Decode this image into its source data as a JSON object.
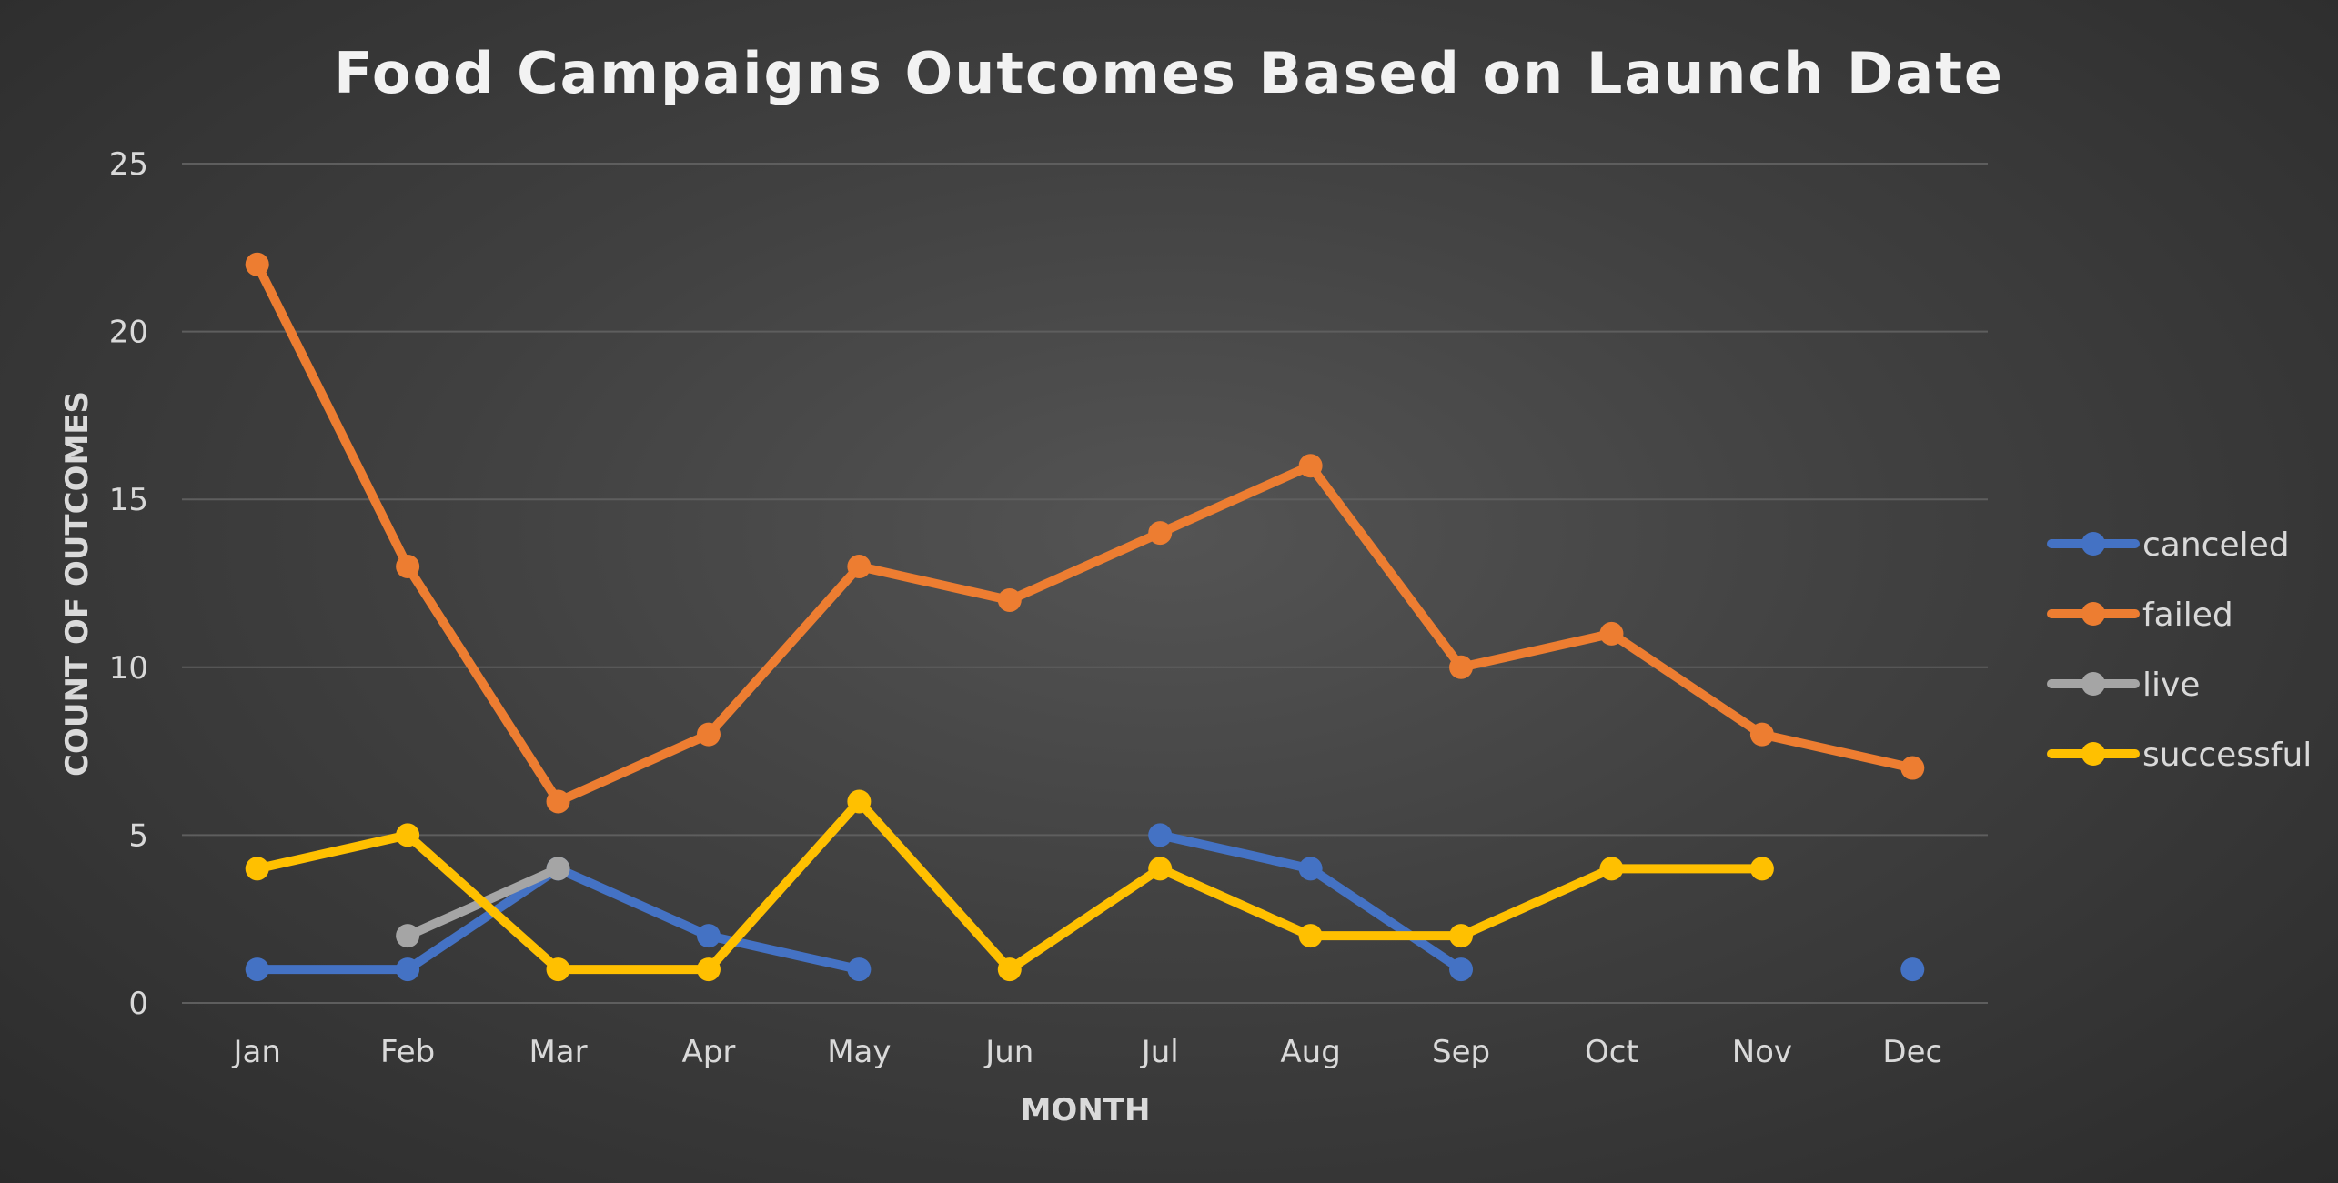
{
  "chart_data": {
    "type": "line",
    "title": "Food Campaigns Outcomes Based on Launch Date",
    "xlabel": "MONTH",
    "ylabel": "COUNT OF OUTCOMES",
    "ylim": [
      0,
      25
    ],
    "yticks": [
      0,
      5,
      10,
      15,
      20,
      25
    ],
    "grid": true,
    "legend_position": "right",
    "categories": [
      "Jan",
      "Feb",
      "Mar",
      "Apr",
      "May",
      "Jun",
      "Jul",
      "Aug",
      "Sep",
      "Oct",
      "Nov",
      "Dec"
    ],
    "series": [
      {
        "name": "canceled",
        "color": "#4472c4",
        "values": [
          1,
          1,
          4,
          2,
          1,
          null,
          5,
          4,
          1,
          null,
          null,
          1
        ]
      },
      {
        "name": "failed",
        "color": "#ed7d31",
        "values": [
          22,
          13,
          6,
          8,
          13,
          12,
          14,
          16,
          10,
          11,
          8,
          7
        ]
      },
      {
        "name": "live",
        "color": "#a5a5a5",
        "values": [
          null,
          2,
          4,
          null,
          null,
          null,
          null,
          null,
          null,
          null,
          null,
          null
        ]
      },
      {
        "name": "successful",
        "color": "#ffc000",
        "values": [
          4,
          5,
          1,
          1,
          6,
          1,
          4,
          2,
          2,
          4,
          4,
          null
        ]
      }
    ]
  }
}
